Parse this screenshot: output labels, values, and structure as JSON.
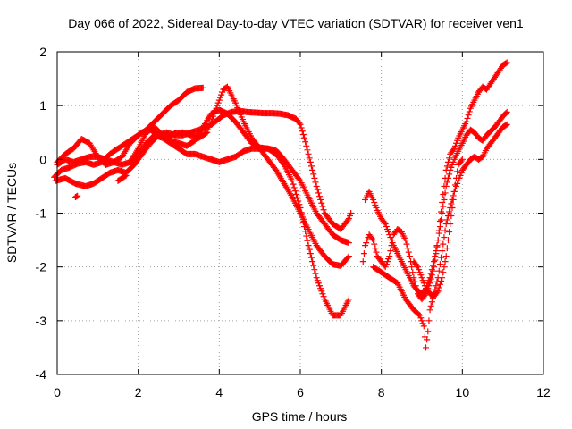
{
  "chart_data": {
    "type": "scatter",
    "title": "Day 066 of 2022, Sidereal Day-to-day VTEC variation (SDTVAR) for receiver ven1",
    "xlabel": "GPS time / hours",
    "ylabel": "SDTVAR / TECUs",
    "xlim": [
      0,
      12
    ],
    "ylim": [
      -4,
      2
    ],
    "xticks": [
      0,
      2,
      4,
      6,
      8,
      10,
      12
    ],
    "yticks": [
      -4,
      -3,
      -2,
      -1,
      0,
      1,
      2
    ],
    "grid": true,
    "marker": "+",
    "color": "#ff0000",
    "series": [
      {
        "points": [
          [
            0,
            -0.05
          ],
          [
            0.2,
            0.1
          ],
          [
            0.4,
            0.2
          ],
          [
            0.6,
            0.38
          ],
          [
            0.8,
            0.3
          ],
          [
            1.0,
            0.05
          ],
          [
            1.2,
            -0.1
          ],
          [
            1.4,
            -0.05
          ],
          [
            1.6,
            0.05
          ],
          [
            1.8,
            0.3
          ],
          [
            2.0,
            0.45
          ],
          [
            2.2,
            0.55
          ],
          [
            2.4,
            0.7
          ],
          [
            2.6,
            0.85
          ],
          [
            2.8,
            1.0
          ],
          [
            3.0,
            1.1
          ],
          [
            3.2,
            1.25
          ],
          [
            3.4,
            1.32
          ],
          [
            3.6,
            1.33
          ]
        ]
      },
      {
        "points": [
          [
            -0.1,
            -0.35
          ],
          [
            0.1,
            -0.2
          ],
          [
            0.3,
            -0.15
          ],
          [
            0.5,
            -0.08
          ],
          [
            0.7,
            -0.05
          ],
          [
            0.9,
            -0.1
          ],
          [
            1.1,
            -0.05
          ],
          [
            1.3,
            0.1
          ],
          [
            1.5,
            0.2
          ],
          [
            1.7,
            0.3
          ],
          [
            1.9,
            0.4
          ],
          [
            2.1,
            0.5
          ],
          [
            2.3,
            0.55
          ],
          [
            2.5,
            0.45
          ],
          [
            2.7,
            0.4
          ],
          [
            2.9,
            0.48
          ],
          [
            3.1,
            0.5
          ],
          [
            3.3,
            0.45
          ],
          [
            3.5,
            0.4
          ],
          [
            3.7,
            0.5
          ],
          [
            3.9,
            0.9
          ],
          [
            4.1,
            1.3
          ],
          [
            4.2,
            1.35
          ],
          [
            4.4,
            1.05
          ],
          [
            4.6,
            0.7
          ],
          [
            4.8,
            0.4
          ],
          [
            5.0,
            0.2
          ],
          [
            5.2,
            0.0
          ],
          [
            5.4,
            -0.2
          ],
          [
            5.6,
            -0.45
          ],
          [
            5.8,
            -0.7
          ],
          [
            6.0,
            -1.0
          ],
          [
            6.2,
            -1.3
          ],
          [
            6.4,
            -1.6
          ],
          [
            6.6,
            -1.8
          ],
          [
            6.8,
            -1.95
          ],
          [
            7.0,
            -1.98
          ],
          [
            7.2,
            -1.8
          ]
        ]
      },
      {
        "points": [
          [
            -0.05,
            -0.4
          ],
          [
            0.2,
            -0.35
          ],
          [
            0.45,
            -0.45
          ],
          [
            0.7,
            -0.5
          ],
          [
            0.9,
            -0.45
          ],
          [
            1.1,
            -0.35
          ],
          [
            1.3,
            -0.25
          ],
          [
            1.5,
            -0.2
          ],
          [
            1.7,
            -0.25
          ],
          [
            1.9,
            -0.1
          ],
          [
            2.1,
            0.1
          ],
          [
            2.3,
            0.3
          ],
          [
            2.5,
            0.45
          ],
          [
            2.7,
            0.5
          ],
          [
            2.9,
            0.45
          ],
          [
            3.1,
            0.45
          ],
          [
            3.3,
            0.5
          ],
          [
            3.5,
            0.55
          ],
          [
            3.7,
            0.6
          ],
          [
            3.9,
            0.7
          ],
          [
            4.1,
            0.82
          ],
          [
            4.3,
            0.88
          ],
          [
            4.5,
            0.9
          ],
          [
            4.7,
            0.88
          ],
          [
            4.9,
            0.87
          ],
          [
            5.1,
            0.86
          ],
          [
            5.3,
            0.86
          ],
          [
            5.5,
            0.85
          ],
          [
            5.7,
            0.82
          ],
          [
            5.9,
            0.75
          ],
          [
            6.0,
            0.65
          ],
          [
            6.1,
            0.4
          ],
          [
            6.2,
            0.1
          ],
          [
            6.3,
            -0.2
          ],
          [
            6.4,
            -0.5
          ],
          [
            6.5,
            -0.75
          ],
          [
            6.6,
            -1.0
          ],
          [
            6.8,
            -1.2
          ],
          [
            7.0,
            -1.3
          ],
          [
            7.2,
            -1.1
          ],
          [
            7.25,
            -1.0
          ]
        ]
      },
      {
        "points": [
          [
            0.0,
            -0.1
          ],
          [
            0.2,
            0.0
          ],
          [
            0.4,
            -0.05
          ],
          [
            0.6,
            0.0
          ],
          [
            0.8,
            0.05
          ],
          [
            1.0,
            0.05
          ],
          [
            1.2,
            0.0
          ],
          [
            1.4,
            -0.05
          ],
          [
            1.6,
            -0.1
          ],
          [
            1.8,
            -0.05
          ],
          [
            2.0,
            0.2
          ],
          [
            2.2,
            0.5
          ],
          [
            2.4,
            0.6
          ],
          [
            2.6,
            0.45
          ],
          [
            2.8,
            0.35
          ],
          [
            3.0,
            0.3
          ],
          [
            3.2,
            0.25
          ],
          [
            3.4,
            0.35
          ],
          [
            3.6,
            0.6
          ],
          [
            3.8,
            0.85
          ],
          [
            4.0,
            0.92
          ],
          [
            4.2,
            0.85
          ],
          [
            4.4,
            0.7
          ],
          [
            4.6,
            0.5
          ],
          [
            4.8,
            0.3
          ],
          [
            5.0,
            0.22
          ],
          [
            5.2,
            0.2
          ],
          [
            5.4,
            0.17
          ],
          [
            5.6,
            0.0
          ],
          [
            5.8,
            -0.2
          ],
          [
            6.0,
            -0.4
          ],
          [
            6.2,
            -0.7
          ],
          [
            6.4,
            -1.0
          ],
          [
            6.6,
            -1.2
          ],
          [
            6.8,
            -1.4
          ],
          [
            7.0,
            -1.5
          ],
          [
            7.2,
            -1.55
          ]
        ]
      },
      {
        "points": [
          [
            1.8,
            -0.1
          ],
          [
            2.0,
            0.1
          ],
          [
            2.2,
            0.3
          ],
          [
            2.4,
            0.45
          ],
          [
            2.6,
            0.4
          ],
          [
            2.8,
            0.3
          ],
          [
            3.0,
            0.2
          ],
          [
            3.2,
            0.1
          ],
          [
            3.4,
            0.1
          ],
          [
            3.6,
            0.05
          ],
          [
            3.8,
            0.0
          ],
          [
            4.0,
            -0.05
          ],
          [
            4.2,
            0.0
          ],
          [
            4.4,
            0.05
          ],
          [
            4.6,
            0.15
          ],
          [
            4.8,
            0.2
          ],
          [
            5.0,
            0.2
          ],
          [
            5.2,
            0.2
          ],
          [
            5.4,
            0.1
          ],
          [
            5.6,
            -0.1
          ],
          [
            5.8,
            -0.4
          ],
          [
            6.0,
            -0.9
          ],
          [
            6.2,
            -1.6
          ],
          [
            6.4,
            -2.2
          ],
          [
            6.6,
            -2.6
          ],
          [
            6.8,
            -2.9
          ],
          [
            7.0,
            -2.9
          ],
          [
            7.2,
            -2.6
          ]
        ]
      },
      {
        "points": [
          [
            0.45,
            -0.7
          ],
          [
            0.5,
            -0.68
          ]
        ]
      },
      {
        "points": [
          [
            1.5,
            -0.4
          ],
          [
            1.6,
            -0.35
          ],
          [
            1.7,
            -0.3
          ]
        ]
      },
      {
        "points": [
          [
            7.55,
            -1.9
          ],
          [
            7.6,
            -1.6
          ],
          [
            7.7,
            -1.4
          ],
          [
            7.8,
            -1.5
          ],
          [
            7.9,
            -1.8
          ],
          [
            8.0,
            -1.9
          ],
          [
            8.1,
            -2.0
          ],
          [
            8.2,
            -1.8
          ],
          [
            8.3,
            -1.4
          ],
          [
            8.4,
            -1.3
          ],
          [
            8.5,
            -1.35
          ],
          [
            8.6,
            -1.5
          ],
          [
            8.7,
            -1.8
          ],
          [
            8.8,
            -2.2
          ],
          [
            8.9,
            -2.5
          ],
          [
            9.0,
            -2.6
          ],
          [
            9.1,
            -2.5
          ],
          [
            9.2,
            -2.3
          ],
          [
            9.3,
            -2.0
          ],
          [
            9.4,
            -1.5
          ],
          [
            9.5,
            -0.8
          ],
          [
            9.6,
            -0.2
          ],
          [
            9.7,
            0.1
          ],
          [
            9.8,
            0.2
          ],
          [
            9.9,
            0.4
          ],
          [
            10.0,
            0.55
          ],
          [
            10.1,
            0.7
          ],
          [
            10.2,
            0.95
          ],
          [
            10.3,
            1.1
          ],
          [
            10.4,
            1.25
          ],
          [
            10.5,
            1.35
          ],
          [
            10.6,
            1.3
          ],
          [
            11.0,
            1.75
          ],
          [
            11.1,
            1.8
          ]
        ]
      },
      {
        "points": [
          [
            7.6,
            -0.75
          ],
          [
            7.7,
            -0.6
          ],
          [
            7.8,
            -0.75
          ],
          [
            7.9,
            -0.95
          ],
          [
            8.0,
            -1.1
          ],
          [
            8.1,
            -1.2
          ],
          [
            8.2,
            -1.4
          ],
          [
            8.3,
            -1.6
          ],
          [
            8.4,
            -1.75
          ],
          [
            8.5,
            -1.9
          ],
          [
            8.6,
            -2.05
          ],
          [
            8.7,
            -2.2
          ],
          [
            8.8,
            -2.35
          ],
          [
            8.9,
            -2.45
          ],
          [
            9.0,
            -2.5
          ],
          [
            9.1,
            -2.4
          ],
          [
            9.2,
            -2.2
          ],
          [
            9.3,
            -1.9
          ],
          [
            9.4,
            -1.5
          ],
          [
            9.5,
            -1.0
          ],
          [
            9.6,
            -0.5
          ],
          [
            9.7,
            -0.2
          ],
          [
            9.8,
            0.0
          ],
          [
            9.9,
            0.15
          ],
          [
            10.0,
            0.3
          ],
          [
            10.1,
            0.45
          ],
          [
            10.2,
            0.55
          ],
          [
            10.3,
            0.5
          ],
          [
            10.4,
            0.4
          ],
          [
            10.5,
            0.35
          ],
          [
            10.6,
            0.45
          ],
          [
            10.8,
            0.6
          ],
          [
            11.0,
            0.8
          ],
          [
            11.1,
            0.88
          ]
        ]
      },
      {
        "points": [
          [
            7.8,
            -2.0
          ],
          [
            8.0,
            -2.1
          ],
          [
            8.2,
            -2.2
          ],
          [
            8.4,
            -2.3
          ],
          [
            8.6,
            -2.6
          ],
          [
            8.8,
            -2.8
          ],
          [
            8.95,
            -2.9
          ],
          [
            9.05,
            -3.1
          ],
          [
            9.1,
            -3.5
          ],
          [
            9.15,
            -3.2
          ],
          [
            9.2,
            -2.8
          ],
          [
            9.3,
            -2.5
          ],
          [
            9.4,
            -2.2
          ],
          [
            9.5,
            -1.7
          ],
          [
            9.6,
            -1.2
          ],
          [
            9.7,
            -0.9
          ],
          [
            9.8,
            -0.6
          ],
          [
            9.9,
            -0.4
          ],
          [
            10.0,
            -0.2
          ],
          [
            10.1,
            -0.1
          ],
          [
            10.2,
            0.0
          ],
          [
            10.3,
            0.05
          ],
          [
            10.4,
            0.0
          ],
          [
            10.5,
            0.05
          ],
          [
            10.6,
            0.2
          ],
          [
            10.8,
            0.4
          ],
          [
            11.0,
            0.6
          ],
          [
            11.1,
            0.65
          ]
        ]
      },
      {
        "points": [
          [
            8.8,
            -1.9
          ],
          [
            8.9,
            -2.0
          ],
          [
            9.0,
            -2.2
          ],
          [
            9.1,
            -2.4
          ],
          [
            9.2,
            -2.5
          ],
          [
            9.3,
            -2.55
          ],
          [
            9.4,
            -2.45
          ],
          [
            9.5,
            -2.2
          ],
          [
            9.6,
            -1.8
          ],
          [
            9.7,
            -1.2
          ],
          [
            9.8,
            -0.6
          ],
          [
            9.9,
            -0.1
          ],
          [
            10.0,
            0.0
          ]
        ]
      }
    ]
  }
}
